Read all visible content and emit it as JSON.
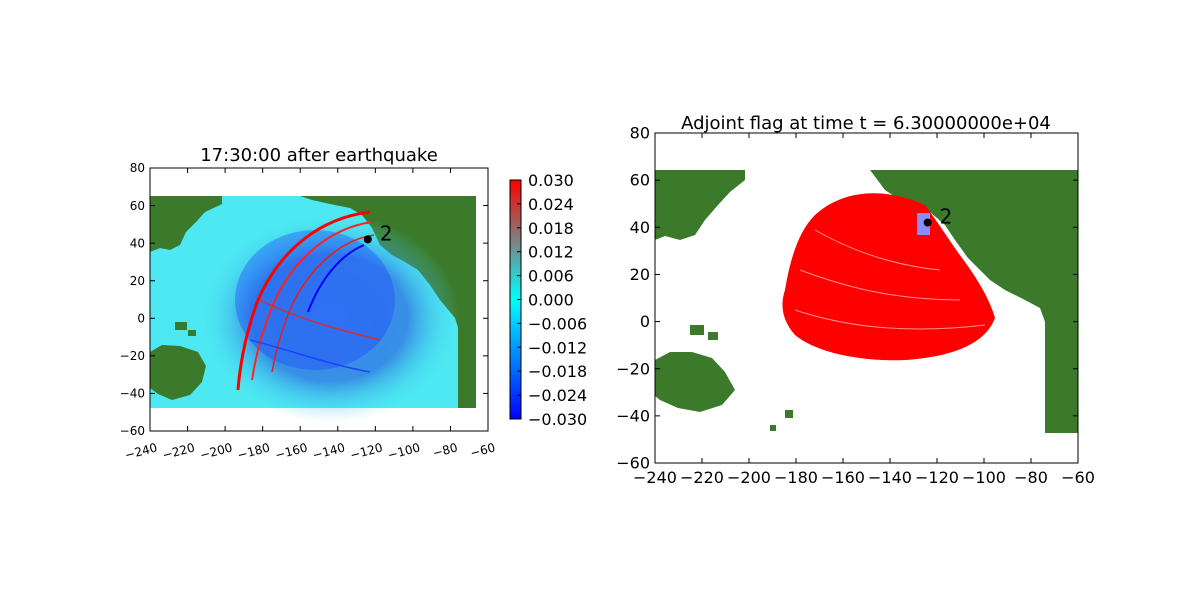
{
  "chart_data": [
    {
      "type": "heatmap",
      "title": "17:30:00 after earthquake",
      "xlabel": "",
      "ylabel": "",
      "xlim": [
        -240,
        -60
      ],
      "ylim": [
        -60,
        80
      ],
      "xticks": [
        "−240",
        "−220",
        "−200",
        "−180",
        "−160",
        "−140",
        "−120",
        "−100",
        "−80",
        "−60"
      ],
      "yticks": [
        "80",
        "60",
        "40",
        "20",
        "0",
        "−20",
        "−40",
        "−60"
      ],
      "colorbar": {
        "min": -0.03,
        "max": 0.03,
        "ticks": [
          "0.030",
          "0.024",
          "0.018",
          "0.012",
          "0.006",
          "0.000",
          "−0.006",
          "−0.012",
          "−0.018",
          "−0.024",
          "−0.030"
        ],
        "colors": [
          "#0000ff",
          "#00ffff",
          "#ff0000"
        ]
      },
      "gauge": {
        "label": "2",
        "lon": -124,
        "lat": 42
      },
      "land_color": "#3a7a2a",
      "ocean_color": "#4de8f2"
    },
    {
      "type": "heatmap",
      "title": "Adjoint flag at time t = 6.30000000e+04",
      "xlabel": "",
      "ylabel": "",
      "xlim": [
        -240,
        -60
      ],
      "ylim": [
        -60,
        80
      ],
      "xticks": [
        "−240",
        "−220",
        "−200",
        "−180",
        "−160",
        "−140",
        "−120",
        "−100",
        "−80",
        "−60"
      ],
      "yticks": [
        "80",
        "60",
        "40",
        "20",
        "0",
        "−20",
        "−40",
        "−60"
      ],
      "gauge": {
        "label": "2",
        "lon": -124,
        "lat": 42
      },
      "land_color": "#3a7a2a",
      "flag_color": "#ff0000",
      "gauge_box_color": "#8c8cff"
    }
  ]
}
